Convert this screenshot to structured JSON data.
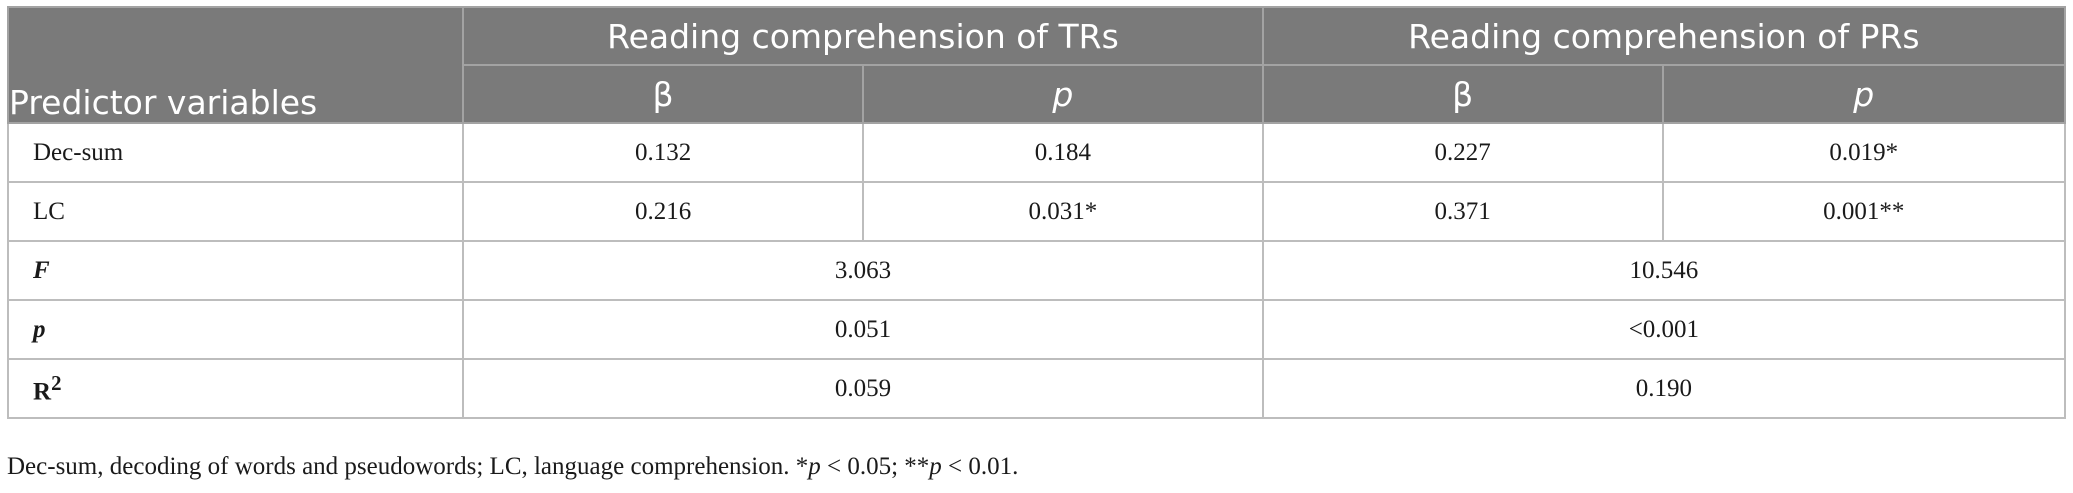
{
  "table": {
    "header": {
      "predictor_label": "Predictor variables",
      "groups": [
        "Reading comprehension of TRs",
        "Reading comprehension of PRs"
      ],
      "subheaders": [
        "β",
        "p",
        "β",
        "p"
      ]
    },
    "rows": [
      {
        "label": "Dec-sum",
        "cells": [
          "0.132",
          "0.184",
          "0.227",
          "0.019*"
        ]
      },
      {
        "label": "LC",
        "cells": [
          "0.216",
          "0.031*",
          "0.371",
          "0.001**"
        ]
      }
    ],
    "summary": [
      {
        "label": "F",
        "values": [
          "3.063",
          "10.546"
        ]
      },
      {
        "label": "p",
        "values": [
          "0.051",
          "<0.001"
        ]
      },
      {
        "label": "R",
        "label_sup": "2",
        "values": [
          "0.059",
          "0.190"
        ]
      }
    ]
  },
  "footnote": {
    "definitions": "Dec-sum, decoding of words and pseudowords; LC, language comprehension. *",
    "p1_sym": "p",
    "p1_rest": " < 0.05; **",
    "p2_sym": "p",
    "p2_rest": " < 0.01."
  }
}
